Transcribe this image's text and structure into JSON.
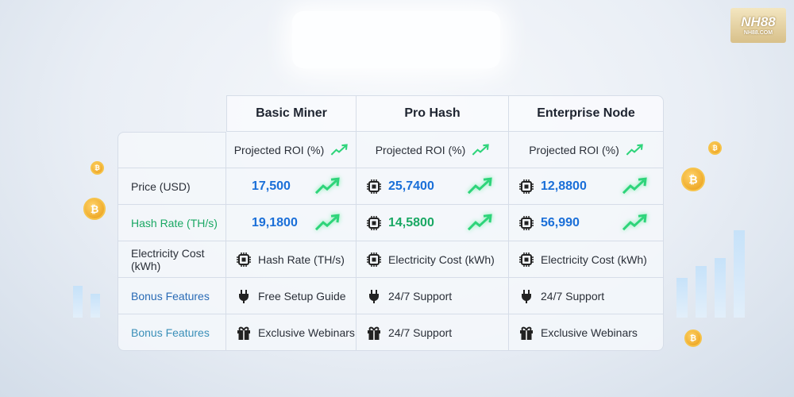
{
  "logo": {
    "name": "NH88",
    "url": "NH88.COM"
  },
  "table": {
    "columns": [
      "Basic Miner",
      "Pro Hash",
      "Enterprise Node"
    ],
    "roi_row": [
      "Projected ROI (%)",
      "Projected ROI (%)",
      "Projected ROI (%)"
    ],
    "rows": [
      {
        "label": "Price (USD)",
        "cells": [
          "17,500",
          "25,7400",
          "12,8800"
        ]
      },
      {
        "label": "Hash Rate (TH/s)",
        "cells": [
          "19,1800",
          "14,5800",
          "56,990"
        ]
      },
      {
        "label": "Electricity Cost (kWh)",
        "cells": [
          "Hash Rate (TH/s)",
          "Electricity Cost (kWh)",
          "Electricity Cost (kWh)"
        ]
      },
      {
        "label": "Bonus Features",
        "cells": [
          "Free Setup Guide",
          "24/7 Support",
          "24/7 Support"
        ]
      },
      {
        "label": "Bonus Features",
        "cells": [
          "Exclusive Webinars",
          "24/7 Support",
          "Exclusive Webinars"
        ]
      }
    ]
  }
}
